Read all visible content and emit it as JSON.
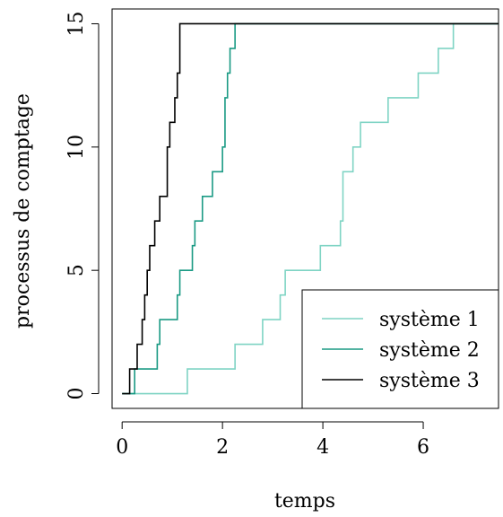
{
  "chart_data": {
    "type": "line",
    "step": true,
    "title": "",
    "xlabel": "temps",
    "ylabel": "processus de comptage",
    "xlim": [
      -0.2,
      7.5
    ],
    "ylim": [
      -0.6,
      15.6
    ],
    "xticks": [
      0,
      2,
      4,
      6
    ],
    "yticks": [
      0,
      5,
      10,
      15
    ],
    "xtick_labels": [
      "0",
      "2",
      "4",
      "6"
    ],
    "ytick_labels": [
      "0",
      "5",
      "10",
      "15"
    ],
    "grid": false,
    "legend_position": "bottom-right",
    "series": [
      {
        "name": "système 1",
        "color": "#7fd4c4",
        "x": [
          0.0,
          1.3,
          2.25,
          2.8,
          3.15,
          3.25,
          3.95,
          4.35,
          4.4,
          4.6,
          4.75,
          5.3,
          5.9,
          6.3,
          6.6
        ],
        "y": [
          0,
          1,
          2,
          3,
          4,
          5,
          6,
          7,
          9,
          10,
          11,
          12,
          13,
          14,
          15
        ]
      },
      {
        "name": "système 2",
        "color": "#1a9a84",
        "x": [
          0.0,
          0.25,
          0.7,
          0.75,
          1.1,
          1.15,
          1.4,
          1.45,
          1.6,
          1.8,
          2.0,
          2.05,
          2.1,
          2.15,
          2.25
        ],
        "y": [
          0,
          1,
          2,
          3,
          4,
          5,
          6,
          7,
          8,
          9,
          10,
          12,
          13,
          14,
          15
        ]
      },
      {
        "name": "système 3",
        "color": "#000000",
        "x": [
          0.0,
          0.15,
          0.3,
          0.4,
          0.45,
          0.5,
          0.55,
          0.65,
          0.75,
          0.9,
          0.95,
          1.05,
          1.1,
          1.15
        ],
        "y": [
          0,
          1,
          2,
          3,
          4,
          5,
          6,
          7,
          8,
          10,
          11,
          12,
          13,
          15
        ]
      }
    ]
  }
}
